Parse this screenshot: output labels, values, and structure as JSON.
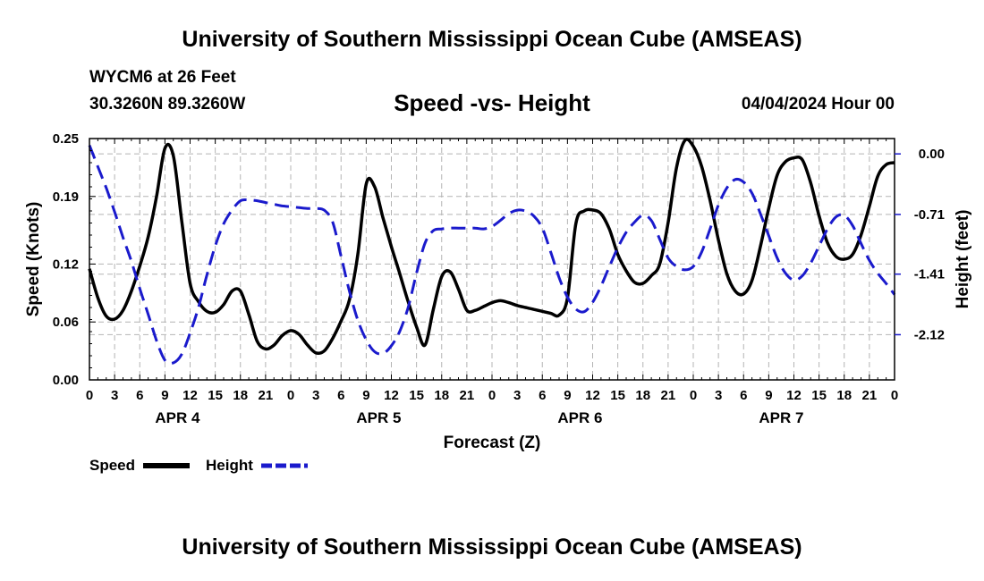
{
  "header": {
    "title_top": "University of Southern Mississippi Ocean Cube (AMSEAS)",
    "title_bottom": "University of Southern Mississippi Ocean Cube (AMSEAS)",
    "station": "WYCM6 at 26 Feet",
    "coordinates": "30.3260N  89.3260W",
    "date_stamp": "04/04/2024 Hour 00"
  },
  "colors": {
    "speed": "#000000",
    "height": "#1a1acc",
    "grid": "#b4b4b4"
  },
  "chart_data": {
    "type": "line",
    "title": "Speed -vs- Height",
    "xlabel": "Forecast (Z)",
    "ylabel": "Speed (Knots)",
    "y2label": "Height (feet)",
    "x_range": [
      0,
      96
    ],
    "x_tick_step_hours": 3,
    "x_tick_labels": [
      "0",
      "3",
      "6",
      "9",
      "12",
      "15",
      "18",
      "21",
      "0",
      "3",
      "6",
      "9",
      "12",
      "15",
      "18",
      "21",
      "0",
      "3",
      "6",
      "9",
      "12",
      "15",
      "18",
      "21",
      "0",
      "3",
      "6",
      "9",
      "12",
      "15",
      "18",
      "21",
      "0"
    ],
    "day_labels": [
      {
        "label": "APR 4",
        "hour": 10.5
      },
      {
        "label": "APR 5",
        "hour": 34.5
      },
      {
        "label": "APR 6",
        "hour": 58.5
      },
      {
        "label": "APR 7",
        "hour": 82.5
      }
    ],
    "ylim": [
      0,
      0.25
    ],
    "y_ticks": [
      0.0,
      0.06,
      0.12,
      0.19,
      0.25
    ],
    "y_tick_labels": [
      "0.00",
      "0.06",
      "0.12",
      "0.19",
      "0.25"
    ],
    "y2lim": [
      -2.65,
      0.18
    ],
    "y2_ticks": [
      0.0,
      -0.71,
      -1.41,
      -2.12
    ],
    "y2_tick_labels": [
      "0.00",
      "-0.71",
      "-1.41",
      "-2.12"
    ],
    "grid": true,
    "legend": {
      "position": "bottom-left",
      "entries": [
        "Speed",
        "Height"
      ]
    },
    "series": [
      {
        "name": "Speed",
        "axis": "left",
        "style": "solid",
        "x": [
          0,
          1,
          2,
          3,
          4,
          5,
          6,
          7,
          8,
          9,
          10,
          11,
          12,
          13,
          14,
          15,
          16,
          17,
          18,
          19,
          20,
          21,
          22,
          23,
          24,
          25,
          26,
          27,
          28,
          29,
          30,
          31,
          32,
          33,
          34,
          35,
          36,
          37,
          38,
          39,
          40,
          41,
          42,
          43,
          44,
          45,
          46,
          47,
          48,
          49,
          50,
          51,
          52,
          53,
          54,
          55,
          56,
          57,
          58,
          59,
          60,
          61,
          62,
          63,
          64,
          65,
          66,
          67,
          68,
          69,
          70,
          71,
          72,
          73,
          74,
          75,
          76,
          77,
          78,
          79,
          80,
          81,
          82,
          83,
          84,
          85,
          86,
          87,
          88,
          89,
          90,
          91,
          92,
          93,
          94,
          95,
          96
        ],
        "values": [
          0.115,
          0.085,
          0.066,
          0.063,
          0.072,
          0.092,
          0.118,
          0.148,
          0.19,
          0.24,
          0.232,
          0.165,
          0.1,
          0.081,
          0.071,
          0.07,
          0.078,
          0.092,
          0.092,
          0.068,
          0.04,
          0.032,
          0.036,
          0.046,
          0.051,
          0.047,
          0.036,
          0.028,
          0.03,
          0.043,
          0.061,
          0.083,
          0.13,
          0.203,
          0.2,
          0.168,
          0.138,
          0.11,
          0.081,
          0.055,
          0.036,
          0.073,
          0.107,
          0.112,
          0.094,
          0.072,
          0.072,
          0.076,
          0.08,
          0.082,
          0.08,
          0.077,
          0.075,
          0.073,
          0.071,
          0.069,
          0.067,
          0.085,
          0.162,
          0.175,
          0.176,
          0.172,
          0.156,
          0.13,
          0.113,
          0.101,
          0.1,
          0.108,
          0.12,
          0.163,
          0.22,
          0.248,
          0.242,
          0.221,
          0.186,
          0.145,
          0.11,
          0.092,
          0.089,
          0.103,
          0.138,
          0.178,
          0.212,
          0.226,
          0.23,
          0.228,
          0.204,
          0.17,
          0.142,
          0.128,
          0.125,
          0.13,
          0.15,
          0.18,
          0.211,
          0.223,
          0.225
        ]
      },
      {
        "name": "Height",
        "axis": "right",
        "style": "dashed",
        "x": [
          0,
          1,
          2,
          3,
          4,
          5,
          6,
          7,
          8,
          9,
          10,
          11,
          12,
          13,
          14,
          15,
          16,
          17,
          18,
          19,
          20,
          21,
          22,
          23,
          24,
          25,
          26,
          27,
          28,
          29,
          30,
          31,
          32,
          33,
          34,
          35,
          36,
          37,
          38,
          39,
          40,
          41,
          42,
          43,
          44,
          45,
          46,
          47,
          48,
          49,
          50,
          51,
          52,
          53,
          54,
          55,
          56,
          57,
          58,
          59,
          60,
          61,
          62,
          63,
          64,
          65,
          66,
          67,
          68,
          69,
          70,
          71,
          72,
          73,
          74,
          75,
          76,
          77,
          78,
          79,
          80,
          81,
          82,
          83,
          84,
          85,
          86,
          87,
          88,
          89,
          90,
          91,
          92,
          93,
          94,
          95,
          96
        ],
        "values": [
          0.1,
          -0.15,
          -0.4,
          -0.68,
          -0.98,
          -1.26,
          -1.58,
          -1.88,
          -2.19,
          -2.42,
          -2.45,
          -2.35,
          -2.1,
          -1.8,
          -1.42,
          -1.08,
          -0.82,
          -0.66,
          -0.55,
          -0.54,
          -0.55,
          -0.57,
          -0.59,
          -0.61,
          -0.62,
          -0.63,
          -0.64,
          -0.64,
          -0.66,
          -0.8,
          -1.2,
          -1.61,
          -1.95,
          -2.18,
          -2.32,
          -2.34,
          -2.25,
          -2.08,
          -1.8,
          -1.4,
          -1.05,
          -0.9,
          -0.88,
          -0.87,
          -0.87,
          -0.87,
          -0.87,
          -0.88,
          -0.85,
          -0.78,
          -0.7,
          -0.66,
          -0.67,
          -0.73,
          -0.87,
          -1.15,
          -1.45,
          -1.68,
          -1.82,
          -1.85,
          -1.74,
          -1.55,
          -1.32,
          -1.1,
          -0.92,
          -0.8,
          -0.72,
          -0.78,
          -1.0,
          -1.22,
          -1.32,
          -1.36,
          -1.32,
          -1.15,
          -0.88,
          -0.6,
          -0.4,
          -0.3,
          -0.33,
          -0.46,
          -0.7,
          -0.96,
          -1.22,
          -1.4,
          -1.48,
          -1.43,
          -1.28,
          -1.08,
          -0.88,
          -0.74,
          -0.72,
          -0.84,
          -1.05,
          -1.25,
          -1.4,
          -1.52,
          -1.65
        ]
      }
    ]
  }
}
